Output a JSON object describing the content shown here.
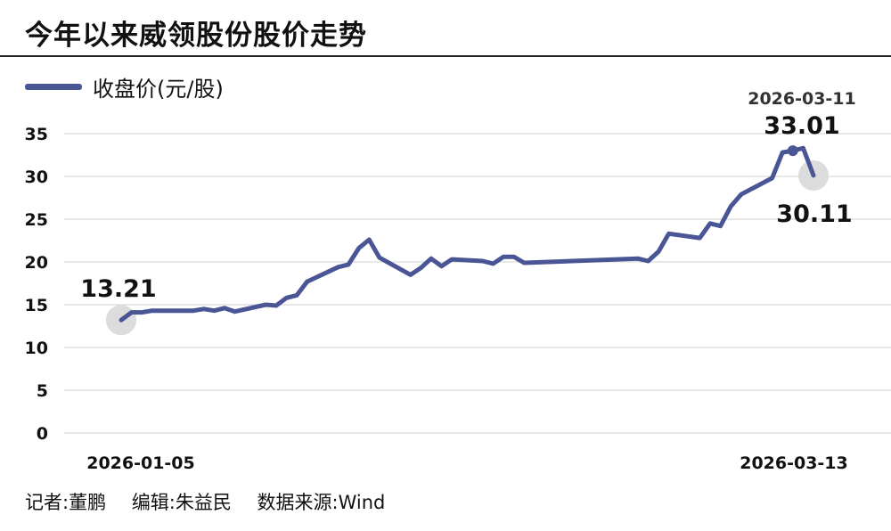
{
  "title": "今年以来威领股份股价走势",
  "credits": {
    "reporter": "记者:董鹏",
    "editor": "编辑:朱益民",
    "source": "数据来源:Wind"
  },
  "colors": {
    "line": "#4a5596",
    "grid": "#d9d9d9",
    "marker": "#dcdcdc"
  },
  "chart_data": {
    "type": "line",
    "title": "今年以来威领股份股价走势",
    "ylim": [
      0,
      35
    ],
    "yticks": [
      0,
      5,
      10,
      15,
      20,
      25,
      30,
      35
    ],
    "grid": true,
    "legend_position": "top-left",
    "x_start_label": "2026-01-05",
    "x_end_label": "2026-03-13",
    "series": [
      {
        "name": "收盘价(元/股)",
        "dates": [
          "2026-01-05",
          "2026-01-06",
          "2026-01-07",
          "2026-01-08",
          "2026-01-09",
          "2026-01-12",
          "2026-01-13",
          "2026-01-14",
          "2026-01-15",
          "2026-01-16",
          "2026-01-19",
          "2026-01-20",
          "2026-01-21",
          "2026-01-22",
          "2026-01-23",
          "2026-01-26",
          "2026-01-27",
          "2026-01-28",
          "2026-01-29",
          "2026-01-30",
          "2026-02-02",
          "2026-02-03",
          "2026-02-04",
          "2026-02-05",
          "2026-02-06",
          "2026-02-09",
          "2026-02-10",
          "2026-02-11",
          "2026-02-12",
          "2026-02-13",
          "2026-02-24",
          "2026-02-25",
          "2026-02-26",
          "2026-02-27",
          "2026-03-02",
          "2026-03-03",
          "2026-03-04",
          "2026-03-05",
          "2026-03-06",
          "2026-03-09",
          "2026-03-10",
          "2026-03-11",
          "2026-03-12",
          "2026-03-13"
        ],
        "values": [
          13.21,
          14.1,
          14.1,
          14.3,
          14.3,
          14.3,
          14.5,
          14.3,
          14.6,
          14.2,
          15.0,
          14.9,
          15.8,
          16.1,
          17.7,
          19.4,
          19.7,
          21.6,
          22.6,
          20.5,
          18.5,
          19.3,
          20.4,
          19.5,
          20.3,
          20.1,
          19.8,
          20.6,
          20.6,
          19.9,
          20.4,
          20.1,
          21.2,
          23.3,
          22.8,
          24.5,
          24.2,
          26.5,
          27.9,
          29.8,
          32.8,
          33.01,
          33.3,
          30.11
        ]
      }
    ],
    "annotations": [
      {
        "label": "13.21",
        "date": "2026-01-05",
        "value": 13.21
      },
      {
        "label": "33.01",
        "date": "2026-03-11",
        "value": 33.01,
        "date_label": "2026-03-11"
      },
      {
        "label": "30.11",
        "date": "2026-03-13",
        "value": 30.11
      }
    ]
  }
}
